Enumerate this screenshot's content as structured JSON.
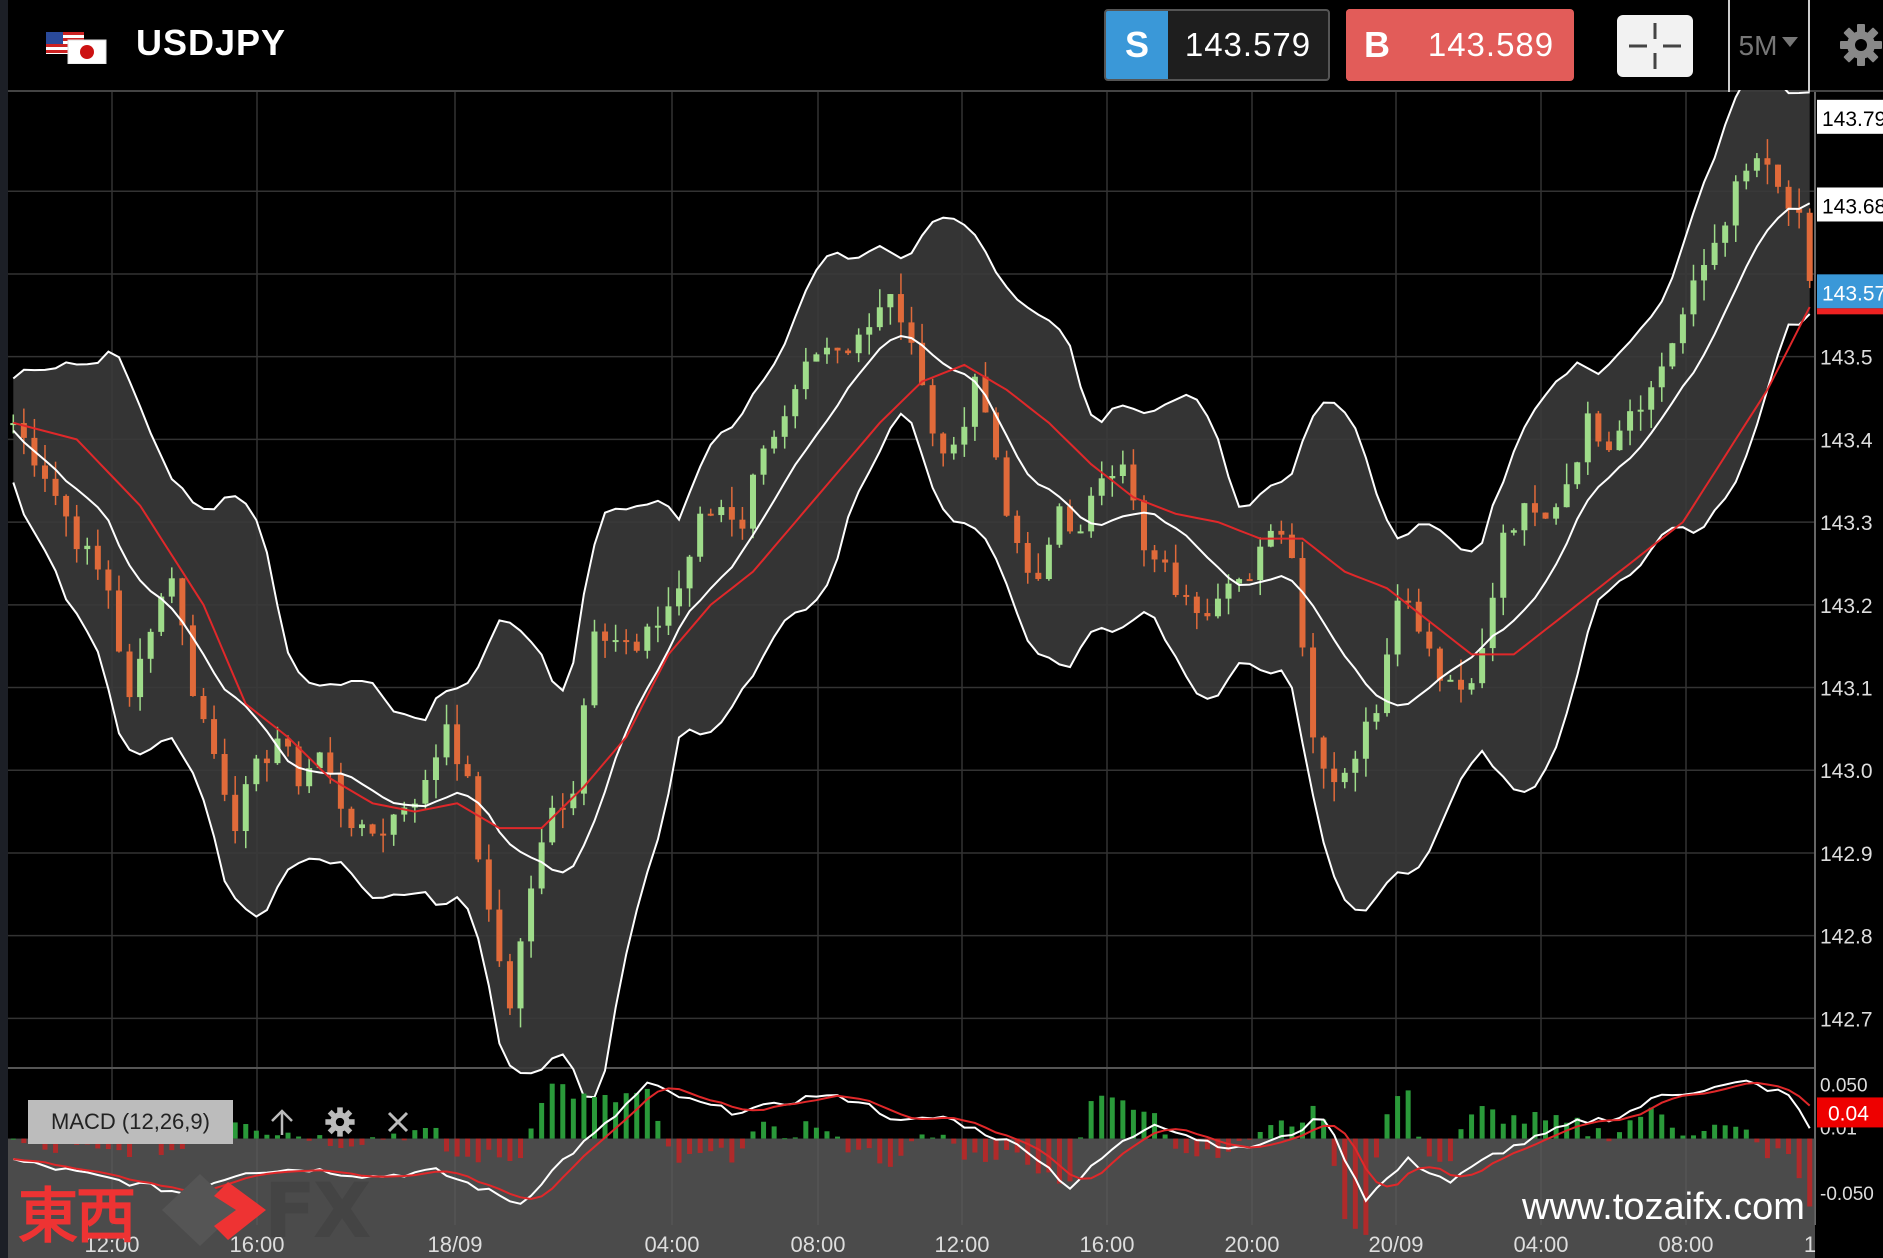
{
  "header": {
    "symbol": "USDJPY",
    "sell_tag": "S",
    "sell_price": "143.579",
    "buy_tag": "B",
    "buy_price": "143.589",
    "timeframe": "5M"
  },
  "icons": {
    "flags": "us-japan-flag-icon",
    "crosshair": "crosshair-icon",
    "settings": "gear-icon",
    "timeframe_dropdown": "caret-down-icon",
    "macd_up": "arrow-up-icon",
    "macd_settings": "gear-icon",
    "macd_close": "close-icon"
  },
  "colors": {
    "sell": "#3a98d8",
    "buy": "#e25c59",
    "bull_candle": "#9fdc8a",
    "bear_candle": "#e06a3a",
    "ma_red": "#e0282a",
    "band_line": "#ffffff",
    "band_fill": "#3a3a3a",
    "current_price_tag": "#3a98d8"
  },
  "indicator": {
    "macd_label": "MACD (12,26,9)",
    "macd_value_tag": "0.04"
  },
  "watermark": {
    "url": "www.tozaifx.com",
    "logo_kanji": "東西",
    "logo_fx": "FX"
  },
  "chart_data": {
    "type": "candlestick",
    "symbol": "USDJPY",
    "interval": "5M",
    "y_ticks": [
      "143.5",
      "143.4",
      "143.3",
      "143.2",
      "143.1",
      "143.0",
      "142.9",
      "142.8",
      "142.7"
    ],
    "y_tick_values": [
      143.5,
      143.4,
      143.3,
      143.2,
      143.1,
      143.0,
      142.9,
      142.8,
      142.7
    ],
    "price_tags": [
      {
        "label": "143.79",
        "value": 143.79
      },
      {
        "label": "143.68",
        "value": 143.684
      },
      {
        "label": "143.57",
        "value": 143.579
      }
    ],
    "ylim": [
      142.64,
      143.82
    ],
    "x_ticks": [
      "12:00",
      "16:00",
      "18/09",
      "04:00",
      "08:00",
      "12:00",
      "16:00",
      "20:00",
      "20/09",
      "04:00",
      "08:00",
      "1"
    ],
    "macd_ticks": [
      "0.050",
      "0.01",
      "-0.050"
    ],
    "macd_tick_values": [
      0.05,
      0.01,
      -0.05
    ],
    "macd_ylim": [
      -0.075,
      0.065
    ],
    "price_path": [
      [
        0,
        143.42
      ],
      [
        3,
        143.36
      ],
      [
        6,
        143.28
      ],
      [
        9,
        143.22
      ],
      [
        11,
        143.08
      ],
      [
        13,
        143.18
      ],
      [
        15,
        143.24
      ],
      [
        17,
        143.1
      ],
      [
        19,
        143.02
      ],
      [
        21,
        142.94
      ],
      [
        23,
        143.0
      ],
      [
        25,
        143.04
      ],
      [
        27,
        142.99
      ],
      [
        29,
        143.02
      ],
      [
        31,
        142.96
      ],
      [
        33,
        142.92
      ],
      [
        35,
        142.93
      ],
      [
        37,
        142.96
      ],
      [
        39,
        142.98
      ],
      [
        41,
        143.06
      ],
      [
        43,
        142.98
      ],
      [
        45,
        142.82
      ],
      [
        47,
        142.72
      ],
      [
        49,
        142.86
      ],
      [
        51,
        142.95
      ],
      [
        53,
        142.98
      ],
      [
        55,
        143.18
      ],
      [
        57,
        143.16
      ],
      [
        59,
        143.14
      ],
      [
        61,
        143.18
      ],
      [
        63,
        143.22
      ],
      [
        65,
        143.3
      ],
      [
        67,
        143.32
      ],
      [
        69,
        143.3
      ],
      [
        71,
        143.4
      ],
      [
        73,
        143.42
      ],
      [
        75,
        143.48
      ],
      [
        77,
        143.5
      ],
      [
        79,
        143.5
      ],
      [
        81,
        143.55
      ],
      [
        83,
        143.58
      ],
      [
        85,
        143.52
      ],
      [
        87,
        143.4
      ],
      [
        89,
        143.38
      ],
      [
        91,
        143.48
      ],
      [
        93,
        143.38
      ],
      [
        95,
        143.26
      ],
      [
        97,
        143.22
      ],
      [
        99,
        143.32
      ],
      [
        101,
        143.28
      ],
      [
        103,
        143.36
      ],
      [
        105,
        143.38
      ],
      [
        107,
        143.26
      ],
      [
        109,
        143.24
      ],
      [
        111,
        143.2
      ],
      [
        113,
        143.2
      ],
      [
        115,
        143.24
      ],
      [
        117,
        143.22
      ],
      [
        119,
        143.3
      ],
      [
        121,
        143.27
      ],
      [
        123,
        143.04
      ],
      [
        125,
        142.99
      ],
      [
        127,
        143.02
      ],
      [
        129,
        143.08
      ],
      [
        131,
        143.22
      ],
      [
        133,
        143.18
      ],
      [
        135,
        143.12
      ],
      [
        137,
        143.1
      ],
      [
        139,
        143.14
      ],
      [
        141,
        143.28
      ],
      [
        143,
        143.31
      ],
      [
        145,
        143.3
      ],
      [
        147,
        143.35
      ],
      [
        149,
        143.42
      ],
      [
        151,
        143.4
      ],
      [
        153,
        143.44
      ],
      [
        155,
        143.46
      ],
      [
        157,
        143.52
      ],
      [
        159,
        143.58
      ],
      [
        161,
        143.64
      ],
      [
        163,
        143.7
      ],
      [
        165,
        143.74
      ],
      [
        167,
        143.7
      ],
      [
        169,
        143.66
      ],
      [
        170,
        143.58
      ]
    ],
    "ma_path": [
      [
        0,
        143.42
      ],
      [
        6,
        143.4
      ],
      [
        12,
        143.32
      ],
      [
        18,
        143.2
      ],
      [
        22,
        143.08
      ],
      [
        26,
        143.04
      ],
      [
        30,
        142.99
      ],
      [
        34,
        142.96
      ],
      [
        38,
        142.95
      ],
      [
        42,
        142.96
      ],
      [
        46,
        142.93
      ],
      [
        50,
        142.93
      ],
      [
        54,
        142.98
      ],
      [
        58,
        143.04
      ],
      [
        62,
        143.14
      ],
      [
        66,
        143.2
      ],
      [
        70,
        143.24
      ],
      [
        74,
        143.3
      ],
      [
        78,
        143.36
      ],
      [
        82,
        143.42
      ],
      [
        86,
        143.47
      ],
      [
        90,
        143.49
      ],
      [
        94,
        143.46
      ],
      [
        98,
        143.42
      ],
      [
        102,
        143.37
      ],
      [
        106,
        143.33
      ],
      [
        110,
        143.31
      ],
      [
        114,
        143.3
      ],
      [
        118,
        143.28
      ],
      [
        122,
        143.28
      ],
      [
        126,
        143.24
      ],
      [
        130,
        143.22
      ],
      [
        134,
        143.18
      ],
      [
        138,
        143.14
      ],
      [
        142,
        143.14
      ],
      [
        146,
        143.18
      ],
      [
        150,
        143.22
      ],
      [
        154,
        143.26
      ],
      [
        158,
        143.3
      ],
      [
        162,
        143.38
      ],
      [
        166,
        143.46
      ],
      [
        170,
        143.56
      ]
    ],
    "macd_path": [
      [
        0,
        -0.02
      ],
      [
        8,
        -0.035
      ],
      [
        16,
        -0.05
      ],
      [
        22,
        -0.03
      ],
      [
        28,
        -0.028
      ],
      [
        34,
        -0.035
      ],
      [
        40,
        -0.03
      ],
      [
        44,
        -0.045
      ],
      [
        48,
        -0.06
      ],
      [
        52,
        -0.02
      ],
      [
        56,
        0.012
      ],
      [
        60,
        0.05
      ],
      [
        64,
        0.035
      ],
      [
        68,
        0.025
      ],
      [
        72,
        0.03
      ],
      [
        76,
        0.04
      ],
      [
        80,
        0.035
      ],
      [
        84,
        0.015
      ],
      [
        88,
        0.02
      ],
      [
        92,
        0.005
      ],
      [
        96,
        -0.01
      ],
      [
        100,
        -0.045
      ],
      [
        104,
        -0.01
      ],
      [
        108,
        0.015
      ],
      [
        112,
        0.0
      ],
      [
        116,
        -0.01
      ],
      [
        120,
        0.0
      ],
      [
        124,
        0.02
      ],
      [
        128,
        -0.055
      ],
      [
        132,
        -0.02
      ],
      [
        136,
        -0.04
      ],
      [
        140,
        -0.015
      ],
      [
        144,
        0.0
      ],
      [
        148,
        0.015
      ],
      [
        152,
        0.02
      ],
      [
        156,
        0.04
      ],
      [
        160,
        0.045
      ],
      [
        164,
        0.052
      ],
      [
        168,
        0.04
      ],
      [
        170,
        0.01
      ]
    ],
    "grid": true
  }
}
